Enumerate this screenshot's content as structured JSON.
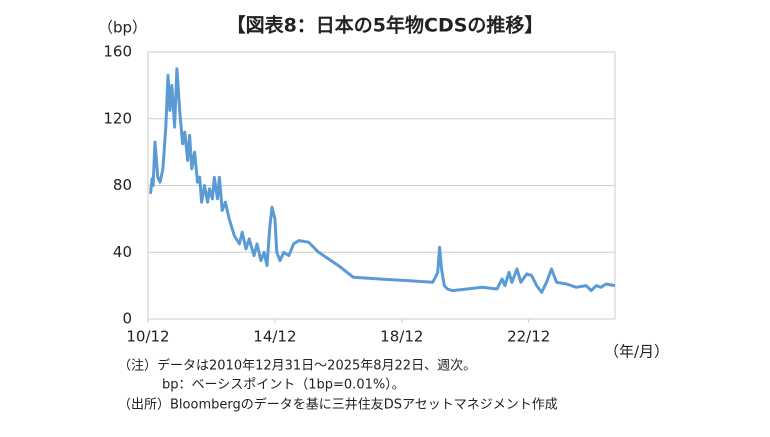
{
  "chart_data": {
    "type": "line",
    "title": "【図表8：日本の5年物CDSの推移】",
    "y_label": "（bp）",
    "x_label": "（年/月）",
    "notes": [
      "（注）データは2010年12月31日～2025年8月22日、週次。",
      "bp：ベーシスポイント（1bp=0.01%）。",
      "（出所）Bloombergのデータを基に三井住友DSアセットマネジメント作成"
    ],
    "x": [
      2011.0,
      2011.05,
      2011.08,
      2011.14,
      2011.23,
      2011.3,
      2011.39,
      2011.48,
      2011.55,
      2011.61,
      2011.67,
      2011.76,
      2011.83,
      2011.92,
      2012.01,
      2012.08,
      2012.17,
      2012.23,
      2012.3,
      2012.39,
      2012.48,
      2012.55,
      2012.61,
      2012.7,
      2012.8,
      2012.86,
      2012.95,
      2013.01,
      2013.11,
      2013.17,
      2013.26,
      2013.36,
      2013.48,
      2013.64,
      2013.8,
      2013.89,
      2014.01,
      2014.11,
      2014.26,
      2014.36,
      2014.48,
      2014.58,
      2014.67,
      2014.76,
      2014.83,
      2014.92,
      2014.98,
      2015.08,
      2015.2,
      2015.36,
      2015.51,
      2015.67,
      2015.98,
      2016.3,
      2016.92,
      2017.39,
      2018.17,
      2019.11,
      2019.89,
      2019.98,
      2020.05,
      2020.11,
      2020.17,
      2020.26,
      2020.36,
      2020.51,
      2020.98,
      2021.45,
      2021.92,
      2022.08,
      2022.17,
      2022.3,
      2022.39,
      2022.55,
      2022.67,
      2022.86,
      2023.01,
      2023.17,
      2023.33,
      2023.48,
      2023.64,
      2023.8,
      2024.11,
      2024.42,
      2024.73,
      2024.89,
      2025.05,
      2025.2,
      2025.36,
      2025.64
    ],
    "series": [
      {
        "color": "#5b9bd5",
        "values": [
          75,
          84,
          80,
          106,
          85,
          82,
          90,
          115,
          146,
          125,
          140,
          115,
          150,
          125,
          105,
          112,
          95,
          110,
          90,
          100,
          82,
          85,
          70,
          80,
          70,
          78,
          72,
          85,
          72,
          85,
          65,
          70,
          60,
          50,
          45,
          52,
          42,
          48,
          38,
          45,
          35,
          40,
          32,
          55,
          67,
          60,
          40,
          35,
          40,
          38,
          45,
          47,
          46,
          40,
          32,
          25,
          24,
          23,
          22,
          25,
          28,
          43,
          30,
          20,
          18,
          17,
          18,
          19,
          18,
          24,
          20,
          28,
          22,
          30,
          22,
          27,
          26,
          20,
          16,
          22,
          30,
          22,
          21,
          19,
          20,
          17,
          20,
          19,
          21,
          20
        ]
      }
    ],
    "xlim": [
      2010.92,
      2025.64
    ],
    "xticks": [
      {
        "value": 2010.92,
        "label": "10/12"
      },
      {
        "value": 2014.92,
        "label": "14/12"
      },
      {
        "value": 2018.92,
        "label": "18/12"
      },
      {
        "value": 2022.92,
        "label": "22/12"
      }
    ],
    "ylim": [
      0,
      160
    ],
    "yticks": [
      0,
      40,
      80,
      120,
      160
    ],
    "grid": true
  }
}
